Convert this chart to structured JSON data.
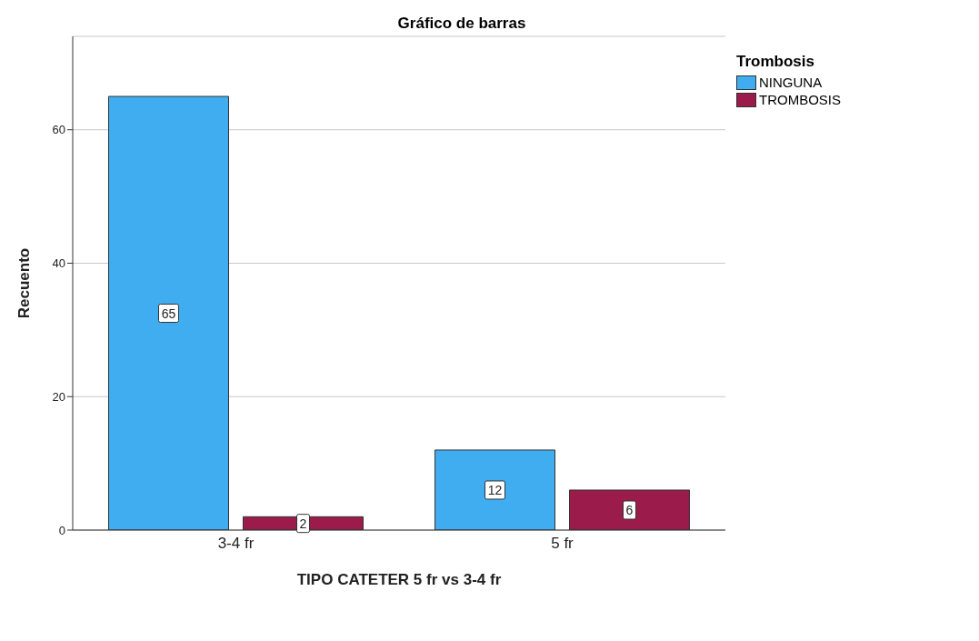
{
  "chart_data": {
    "type": "bar",
    "title": "Gráfico de barras",
    "xlabel": "TIPO CATETER 5 fr vs 3-4 fr",
    "ylabel": "Recuento",
    "legend_title": "Trombosis",
    "categories": [
      "3-4 fr",
      "5 fr"
    ],
    "series": [
      {
        "name": "NINGUNA",
        "color": "#40adf0",
        "values": [
          65,
          12
        ]
      },
      {
        "name": "TROMBOSIS",
        "color": "#9b1b4b",
        "values": [
          2,
          6
        ]
      }
    ],
    "ylim": [
      0,
      74
    ],
    "yticks": [
      0,
      20,
      40,
      60
    ],
    "grid": "y",
    "legend": "top right",
    "data_labels": true
  }
}
